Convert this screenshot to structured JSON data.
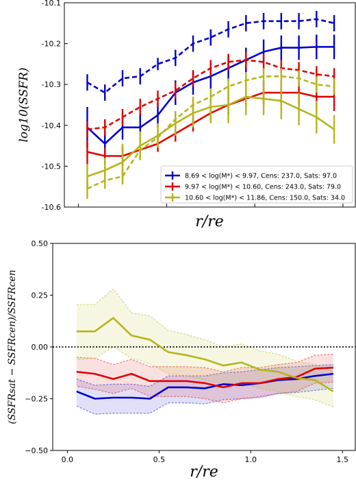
{
  "chart_data": [
    {
      "type": "line",
      "ylabel": "log10(SSFR)",
      "xlabel": "r/re",
      "xlim": [
        -0.08,
        1.57
      ],
      "ylim": [
        -10.6,
        -10.1
      ],
      "yticks": [
        "-10.6",
        "-10.5",
        "-10.4",
        "-10.3",
        "-10.2",
        "-10.1"
      ],
      "x": [
        0.05,
        0.15,
        0.25,
        0.35,
        0.45,
        0.55,
        0.65,
        0.75,
        0.85,
        0.95,
        1.05,
        1.15,
        1.25,
        1.35,
        1.45
      ],
      "legend_position": "lower-right",
      "legend": [
        "8.69 < log(M*) < 9.97, Cens: 237.0, Sats: 97.0",
        "9.97 < log(M*) < 10.60, Cens: 243.0, Sats: 79.0",
        "10.60 < log(M*) < 11.86, Cens: 150.0, Sats: 34.0"
      ],
      "series": [
        {
          "color": "#0000cc",
          "cens": [
            -10.405,
            -10.445,
            -10.405,
            -10.405,
            -10.375,
            -10.32,
            -10.295,
            -10.28,
            -10.26,
            -10.24,
            -10.22,
            -10.21,
            -10.21,
            -10.208,
            -10.208
          ],
          "cens_err": [
            0.05,
            0.03,
            0.03,
            0.035,
            0.03,
            0.03,
            0.03,
            0.03,
            0.03,
            0.03,
            0.03,
            0.03,
            0.03,
            0.03,
            0.03
          ],
          "sats": [
            -10.295,
            -10.32,
            -10.285,
            -10.28,
            -10.25,
            -10.235,
            -10.2,
            -10.185,
            -10.165,
            -10.15,
            -10.145,
            -10.145,
            -10.145,
            -10.14,
            -10.15
          ],
          "sats_err": [
            0.02,
            0.02,
            0.02,
            0.02,
            0.015,
            0.02,
            0.02,
            0.02,
            0.02,
            0.02,
            0.02,
            0.02,
            0.02,
            0.02,
            0.02
          ]
        },
        {
          "color": "#e00000",
          "cens": [
            -10.465,
            -10.475,
            -10.475,
            -10.46,
            -10.445,
            -10.42,
            -10.395,
            -10.37,
            -10.35,
            -10.335,
            -10.32,
            -10.32,
            -10.32,
            -10.33,
            -10.33
          ],
          "cens_err": [
            0.03,
            0.02,
            0.025,
            0.025,
            0.02,
            0.02,
            0.02,
            0.02,
            0.025,
            0.025,
            0.03,
            0.03,
            0.03,
            0.035,
            0.035
          ],
          "sats": [
            -10.41,
            -10.405,
            -10.38,
            -10.355,
            -10.335,
            -10.315,
            -10.285,
            -10.26,
            -10.245,
            -10.24,
            -10.245,
            -10.26,
            -10.265,
            -10.275,
            -10.28
          ],
          "sats_err": [
            0.02,
            0.02,
            0.02,
            0.02,
            0.02,
            0.02,
            0.02,
            0.02,
            0.02,
            0.02,
            0.02,
            0.02,
            0.02,
            0.02,
            0.02
          ]
        },
        {
          "color": "#b5b51a",
          "cens": [
            -10.525,
            -10.51,
            -10.49,
            -10.45,
            -10.425,
            -10.395,
            -10.37,
            -10.355,
            -10.35,
            -10.33,
            -10.335,
            -10.34,
            -10.36,
            -10.38,
            -10.41
          ],
          "cens_err": [
            0.03,
            0.03,
            0.045,
            0.035,
            0.03,
            0.03,
            0.035,
            0.04,
            0.045,
            0.045,
            0.04,
            0.045,
            0.04,
            0.04,
            0.035
          ],
          "sats": [
            -10.555,
            -10.535,
            -10.525,
            -10.46,
            -10.43,
            -10.385,
            -10.35,
            -10.33,
            -10.305,
            -10.29,
            -10.28,
            -10.28,
            -10.285,
            -10.3,
            -10.305
          ],
          "sats_err": [
            0.025,
            0.02,
            0.02,
            0.02,
            0.02,
            0.02,
            0.02,
            0.02,
            0.02,
            0.02,
            0.02,
            0.02,
            0.02,
            0.02,
            0.02
          ]
        }
      ]
    },
    {
      "type": "line",
      "ylabel": "(SSFRsat − SSFRcen)/SSFRcen",
      "xlabel": "r/re",
      "xlim": [
        -0.08,
        1.57
      ],
      "ylim": [
        -0.5,
        0.5
      ],
      "yticks": [
        "−0.50",
        "−0.25",
        "0.00",
        "0.25",
        "0.50"
      ],
      "xticks": [
        "0.0",
        "0.5",
        "1.0",
        "1.5"
      ],
      "hline": 0.0,
      "x": [
        0.05,
        0.15,
        0.25,
        0.35,
        0.45,
        0.55,
        0.65,
        0.75,
        0.85,
        0.95,
        1.05,
        1.15,
        1.25,
        1.35,
        1.45
      ],
      "series": [
        {
          "color": "#0000cc",
          "values": [
            -0.215,
            -0.25,
            -0.245,
            -0.245,
            -0.25,
            -0.195,
            -0.195,
            -0.2,
            -0.18,
            -0.185,
            -0.175,
            -0.16,
            -0.155,
            -0.14,
            -0.13
          ],
          "upper": [
            -0.155,
            -0.185,
            -0.18,
            -0.18,
            -0.19,
            -0.14,
            -0.14,
            -0.14,
            -0.125,
            -0.12,
            -0.11,
            -0.1,
            -0.095,
            -0.09,
            -0.085
          ],
          "lower": [
            -0.285,
            -0.325,
            -0.32,
            -0.32,
            -0.32,
            -0.27,
            -0.27,
            -0.275,
            -0.255,
            -0.25,
            -0.24,
            -0.225,
            -0.22,
            -0.21,
            -0.2
          ]
        },
        {
          "color": "#e00000",
          "values": [
            -0.12,
            -0.13,
            -0.155,
            -0.13,
            -0.165,
            -0.165,
            -0.165,
            -0.175,
            -0.195,
            -0.175,
            -0.175,
            -0.155,
            -0.145,
            -0.105,
            -0.1
          ],
          "upper": [
            -0.05,
            -0.055,
            -0.085,
            -0.06,
            -0.095,
            -0.095,
            -0.095,
            -0.1,
            -0.12,
            -0.1,
            -0.1,
            -0.085,
            -0.075,
            -0.04,
            -0.035
          ],
          "lower": [
            -0.19,
            -0.205,
            -0.225,
            -0.2,
            -0.24,
            -0.24,
            -0.24,
            -0.25,
            -0.27,
            -0.25,
            -0.245,
            -0.225,
            -0.215,
            -0.175,
            -0.17
          ]
        },
        {
          "color": "#b5b51a",
          "values": [
            0.075,
            0.075,
            0.14,
            0.055,
            0.035,
            -0.025,
            -0.04,
            -0.06,
            -0.09,
            -0.075,
            -0.11,
            -0.12,
            -0.15,
            -0.16,
            -0.215
          ],
          "upper": [
            0.205,
            0.205,
            0.28,
            0.165,
            0.15,
            0.08,
            0.06,
            0.035,
            0.0,
            0.015,
            -0.02,
            -0.035,
            -0.07,
            -0.085,
            -0.12
          ],
          "lower": [
            -0.06,
            -0.055,
            0.0,
            -0.055,
            -0.08,
            -0.13,
            -0.14,
            -0.16,
            -0.18,
            -0.175,
            -0.2,
            -0.215,
            -0.24,
            -0.255,
            -0.29
          ]
        }
      ]
    }
  ]
}
